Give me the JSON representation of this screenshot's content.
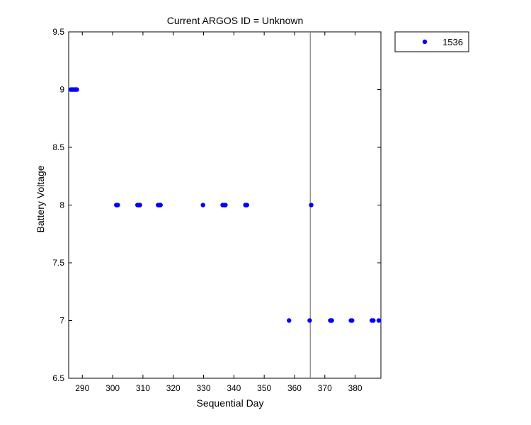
{
  "chart_data": {
    "type": "scatter",
    "title": "Current ARGOS ID = Unknown",
    "xlabel": "Sequential Day",
    "ylabel": "Battery Voltage",
    "xlim": [
      285.5,
      388.5
    ],
    "ylim": [
      6.5,
      9.5
    ],
    "xticks": [
      290,
      300,
      310,
      320,
      330,
      340,
      350,
      360,
      370,
      380
    ],
    "yticks": [
      6.5,
      7,
      7.5,
      8,
      8.5,
      9,
      9.5
    ],
    "xtick_labels": [
      "290",
      "300",
      "310",
      "320",
      "330",
      "340",
      "350",
      "360",
      "370",
      "380"
    ],
    "ytick_labels": [
      "6.5",
      "7",
      "7.5",
      "8",
      "8.5",
      "9",
      "9.5"
    ],
    "grid": false,
    "legend_position": "outside-top-right",
    "vertical_line_x": 365.2,
    "vertical_line_color": "#808080",
    "series": [
      {
        "name": "1536",
        "color": "#0000ff",
        "marker": "dot",
        "points": [
          {
            "x": 286.2,
            "y": 9
          },
          {
            "x": 286.7,
            "y": 9
          },
          {
            "x": 287.2,
            "y": 9
          },
          {
            "x": 287.7,
            "y": 9
          },
          {
            "x": 288.2,
            "y": 9
          },
          {
            "x": 301.2,
            "y": 8
          },
          {
            "x": 301.7,
            "y": 8
          },
          {
            "x": 308.2,
            "y": 8
          },
          {
            "x": 308.6,
            "y": 8
          },
          {
            "x": 309.0,
            "y": 8
          },
          {
            "x": 315.0,
            "y": 8
          },
          {
            "x": 315.4,
            "y": 8
          },
          {
            "x": 315.8,
            "y": 8
          },
          {
            "x": 329.8,
            "y": 8
          },
          {
            "x": 336.3,
            "y": 8
          },
          {
            "x": 336.8,
            "y": 8
          },
          {
            "x": 337.2,
            "y": 8
          },
          {
            "x": 343.8,
            "y": 8
          },
          {
            "x": 344.3,
            "y": 8
          },
          {
            "x": 365.5,
            "y": 8
          },
          {
            "x": 358.2,
            "y": 7
          },
          {
            "x": 365.0,
            "y": 7
          },
          {
            "x": 371.8,
            "y": 7
          },
          {
            "x": 372.3,
            "y": 7
          },
          {
            "x": 378.6,
            "y": 7
          },
          {
            "x": 379.0,
            "y": 7
          },
          {
            "x": 385.5,
            "y": 7
          },
          {
            "x": 386.0,
            "y": 7
          },
          {
            "x": 387.8,
            "y": 7
          }
        ]
      }
    ]
  }
}
